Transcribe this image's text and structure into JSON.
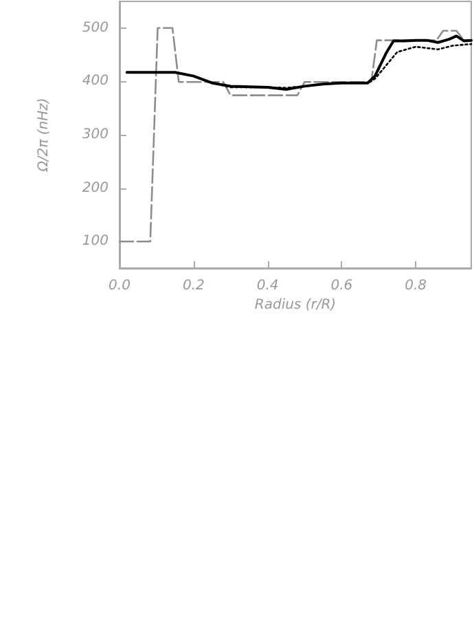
{
  "chart_data": {
    "type": "line",
    "xlabel": "Radius (r/R)",
    "ylabel": "Ω/2π (nHz)",
    "xlim": [
      0,
      0.95
    ],
    "xticks": [
      {
        "value": 0,
        "label": "0.0"
      },
      {
        "value": 0.2,
        "label": "0.2"
      },
      {
        "value": 0.4,
        "label": "0.4"
      },
      {
        "value": 0.6,
        "label": "0.6"
      },
      {
        "value": 0.8,
        "label": "0.8"
      }
    ],
    "ylim": [
      50,
      550
    ],
    "yticks": [
      100,
      200,
      300,
      400,
      500
    ],
    "grid": false,
    "marker": "none",
    "series": [
      {
        "color": "#8c8c8c",
        "line_style": "dashed",
        "x": [
          0.0,
          0.083,
          0.103,
          0.143,
          0.16,
          0.28,
          0.3,
          0.48,
          0.5,
          0.68,
          0.695,
          0.856,
          0.874,
          0.91,
          0.93,
          0.95
        ],
        "values": [
          100,
          100,
          500,
          500,
          399,
          399,
          374,
          374,
          399,
          399,
          477,
          477,
          495,
          495,
          477,
          477
        ]
      },
      {
        "color": "#000000",
        "line_style": "dotted",
        "x": [
          0.02,
          0.15,
          0.2,
          0.25,
          0.3,
          0.4,
          0.45,
          0.5,
          0.55,
          0.6,
          0.67,
          0.69,
          0.72,
          0.75,
          0.8,
          0.86,
          0.9,
          0.95
        ],
        "values": [
          417,
          417,
          410,
          397,
          389,
          389,
          388,
          391,
          395,
          397,
          397,
          405,
          430,
          455,
          465,
          460,
          467,
          470
        ]
      },
      {
        "color": "#000000",
        "line_style": "solid",
        "x": [
          0.02,
          0.15,
          0.2,
          0.25,
          0.3,
          0.4,
          0.45,
          0.5,
          0.55,
          0.6,
          0.67,
          0.69,
          0.72,
          0.74,
          0.77,
          0.8,
          0.83,
          0.86,
          0.89,
          0.91,
          0.93,
          0.95
        ],
        "values": [
          417,
          417,
          410,
          397,
          391,
          389,
          385,
          391,
          395,
          397,
          397,
          410,
          453,
          476,
          476,
          477,
          477,
          473,
          479,
          485,
          476,
          477
        ]
      }
    ]
  }
}
